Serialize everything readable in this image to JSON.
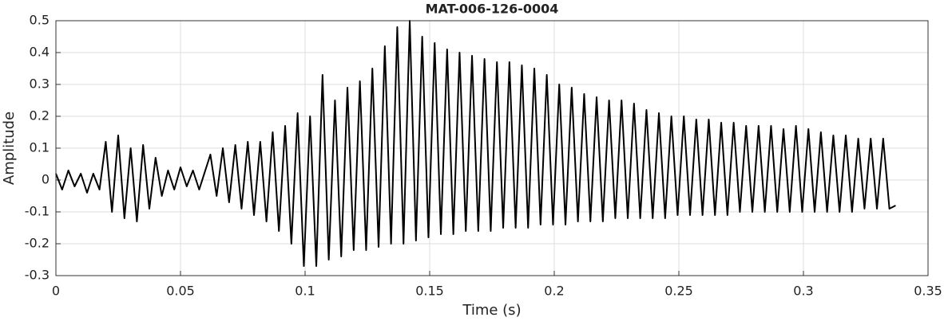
{
  "chart_data": {
    "type": "line",
    "title": "MAT-006-126-0004",
    "x_label": "Time (s)",
    "y_label": "Amplitude",
    "xlim": [
      0,
      0.35
    ],
    "xticks": [
      0,
      0.05,
      0.1,
      0.15,
      0.2,
      0.25,
      0.3,
      0.35
    ],
    "ylim": [
      -0.3,
      0.5
    ],
    "yticks": [
      -0.3,
      -0.2,
      -0.1,
      0,
      0.1,
      0.2,
      0.3,
      0.4,
      0.5
    ],
    "grid": true,
    "series": [
      {
        "color": "#000000",
        "x": [
          0,
          0.0025,
          0.005,
          0.0075,
          0.01,
          0.0125,
          0.015,
          0.0175,
          0.02,
          0.0225,
          0.025,
          0.0275,
          0.03,
          0.0325,
          0.035,
          0.0375,
          0.04,
          0.0425,
          0.045,
          0.0475,
          0.05,
          0.0525,
          0.055,
          0.0575,
          0.062,
          0.0645,
          0.067,
          0.0695,
          0.072,
          0.0745,
          0.077,
          0.0795,
          0.082,
          0.0845,
          0.087,
          0.0895,
          0.092,
          0.0945,
          0.097,
          0.0995,
          0.102,
          0.1045,
          0.107,
          0.1095,
          0.112,
          0.1145,
          0.117,
          0.1195,
          0.122,
          0.1245,
          0.127,
          0.1295,
          0.132,
          0.1345,
          0.137,
          0.1395,
          0.142,
          0.1445,
          0.147,
          0.1495,
          0.152,
          0.1545,
          0.157,
          0.1595,
          0.162,
          0.1645,
          0.167,
          0.1695,
          0.172,
          0.1745,
          0.177,
          0.1795,
          0.182,
          0.1845,
          0.187,
          0.1895,
          0.192,
          0.1945,
          0.197,
          0.1995,
          0.202,
          0.2045,
          0.207,
          0.2095,
          0.212,
          0.2145,
          0.217,
          0.2195,
          0.222,
          0.2245,
          0.227,
          0.2295,
          0.232,
          0.2345,
          0.237,
          0.2395,
          0.242,
          0.2445,
          0.247,
          0.2495,
          0.252,
          0.2545,
          0.257,
          0.2595,
          0.262,
          0.2645,
          0.267,
          0.2695,
          0.272,
          0.2745,
          0.277,
          0.2795,
          0.282,
          0.2845,
          0.287,
          0.2895,
          0.292,
          0.2945,
          0.297,
          0.2995,
          0.302,
          0.3045,
          0.307,
          0.3095,
          0.312,
          0.3145,
          0.317,
          0.3195,
          0.322,
          0.3245,
          0.327,
          0.3295,
          0.332,
          0.3345,
          0.337
        ],
        "values": [
          0.02,
          -0.03,
          0.03,
          -0.02,
          0.02,
          -0.04,
          0.02,
          -0.03,
          0.12,
          -0.1,
          0.14,
          -0.12,
          0.1,
          -0.13,
          0.11,
          -0.09,
          0.07,
          -0.05,
          0.03,
          -0.03,
          0.04,
          -0.02,
          0.03,
          -0.03,
          0.08,
          -0.05,
          0.1,
          -0.07,
          0.11,
          -0.09,
          0.12,
          -0.11,
          0.12,
          -0.13,
          0.15,
          -0.16,
          0.17,
          -0.2,
          0.21,
          -0.27,
          0.2,
          -0.27,
          0.33,
          -0.25,
          0.25,
          -0.24,
          0.29,
          -0.22,
          0.31,
          -0.22,
          0.35,
          -0.21,
          0.42,
          -0.2,
          0.48,
          -0.2,
          0.5,
          -0.19,
          0.45,
          -0.18,
          0.43,
          -0.17,
          0.41,
          -0.17,
          0.4,
          -0.16,
          0.39,
          -0.16,
          0.38,
          -0.16,
          0.37,
          -0.15,
          0.37,
          -0.15,
          0.36,
          -0.15,
          0.35,
          -0.14,
          0.33,
          -0.14,
          0.3,
          -0.14,
          0.29,
          -0.13,
          0.27,
          -0.13,
          0.26,
          -0.13,
          0.25,
          -0.12,
          0.25,
          -0.12,
          0.24,
          -0.12,
          0.22,
          -0.12,
          0.21,
          -0.12,
          0.2,
          -0.11,
          0.2,
          -0.11,
          0.19,
          -0.11,
          0.19,
          -0.11,
          0.18,
          -0.11,
          0.18,
          -0.1,
          0.17,
          -0.1,
          0.17,
          -0.1,
          0.17,
          -0.1,
          0.16,
          -0.1,
          0.17,
          -0.1,
          0.16,
          -0.1,
          0.15,
          -0.1,
          0.14,
          -0.1,
          0.14,
          -0.1,
          0.13,
          -0.09,
          0.13,
          -0.09,
          0.13,
          -0.09,
          -0.08
        ]
      }
    ]
  }
}
